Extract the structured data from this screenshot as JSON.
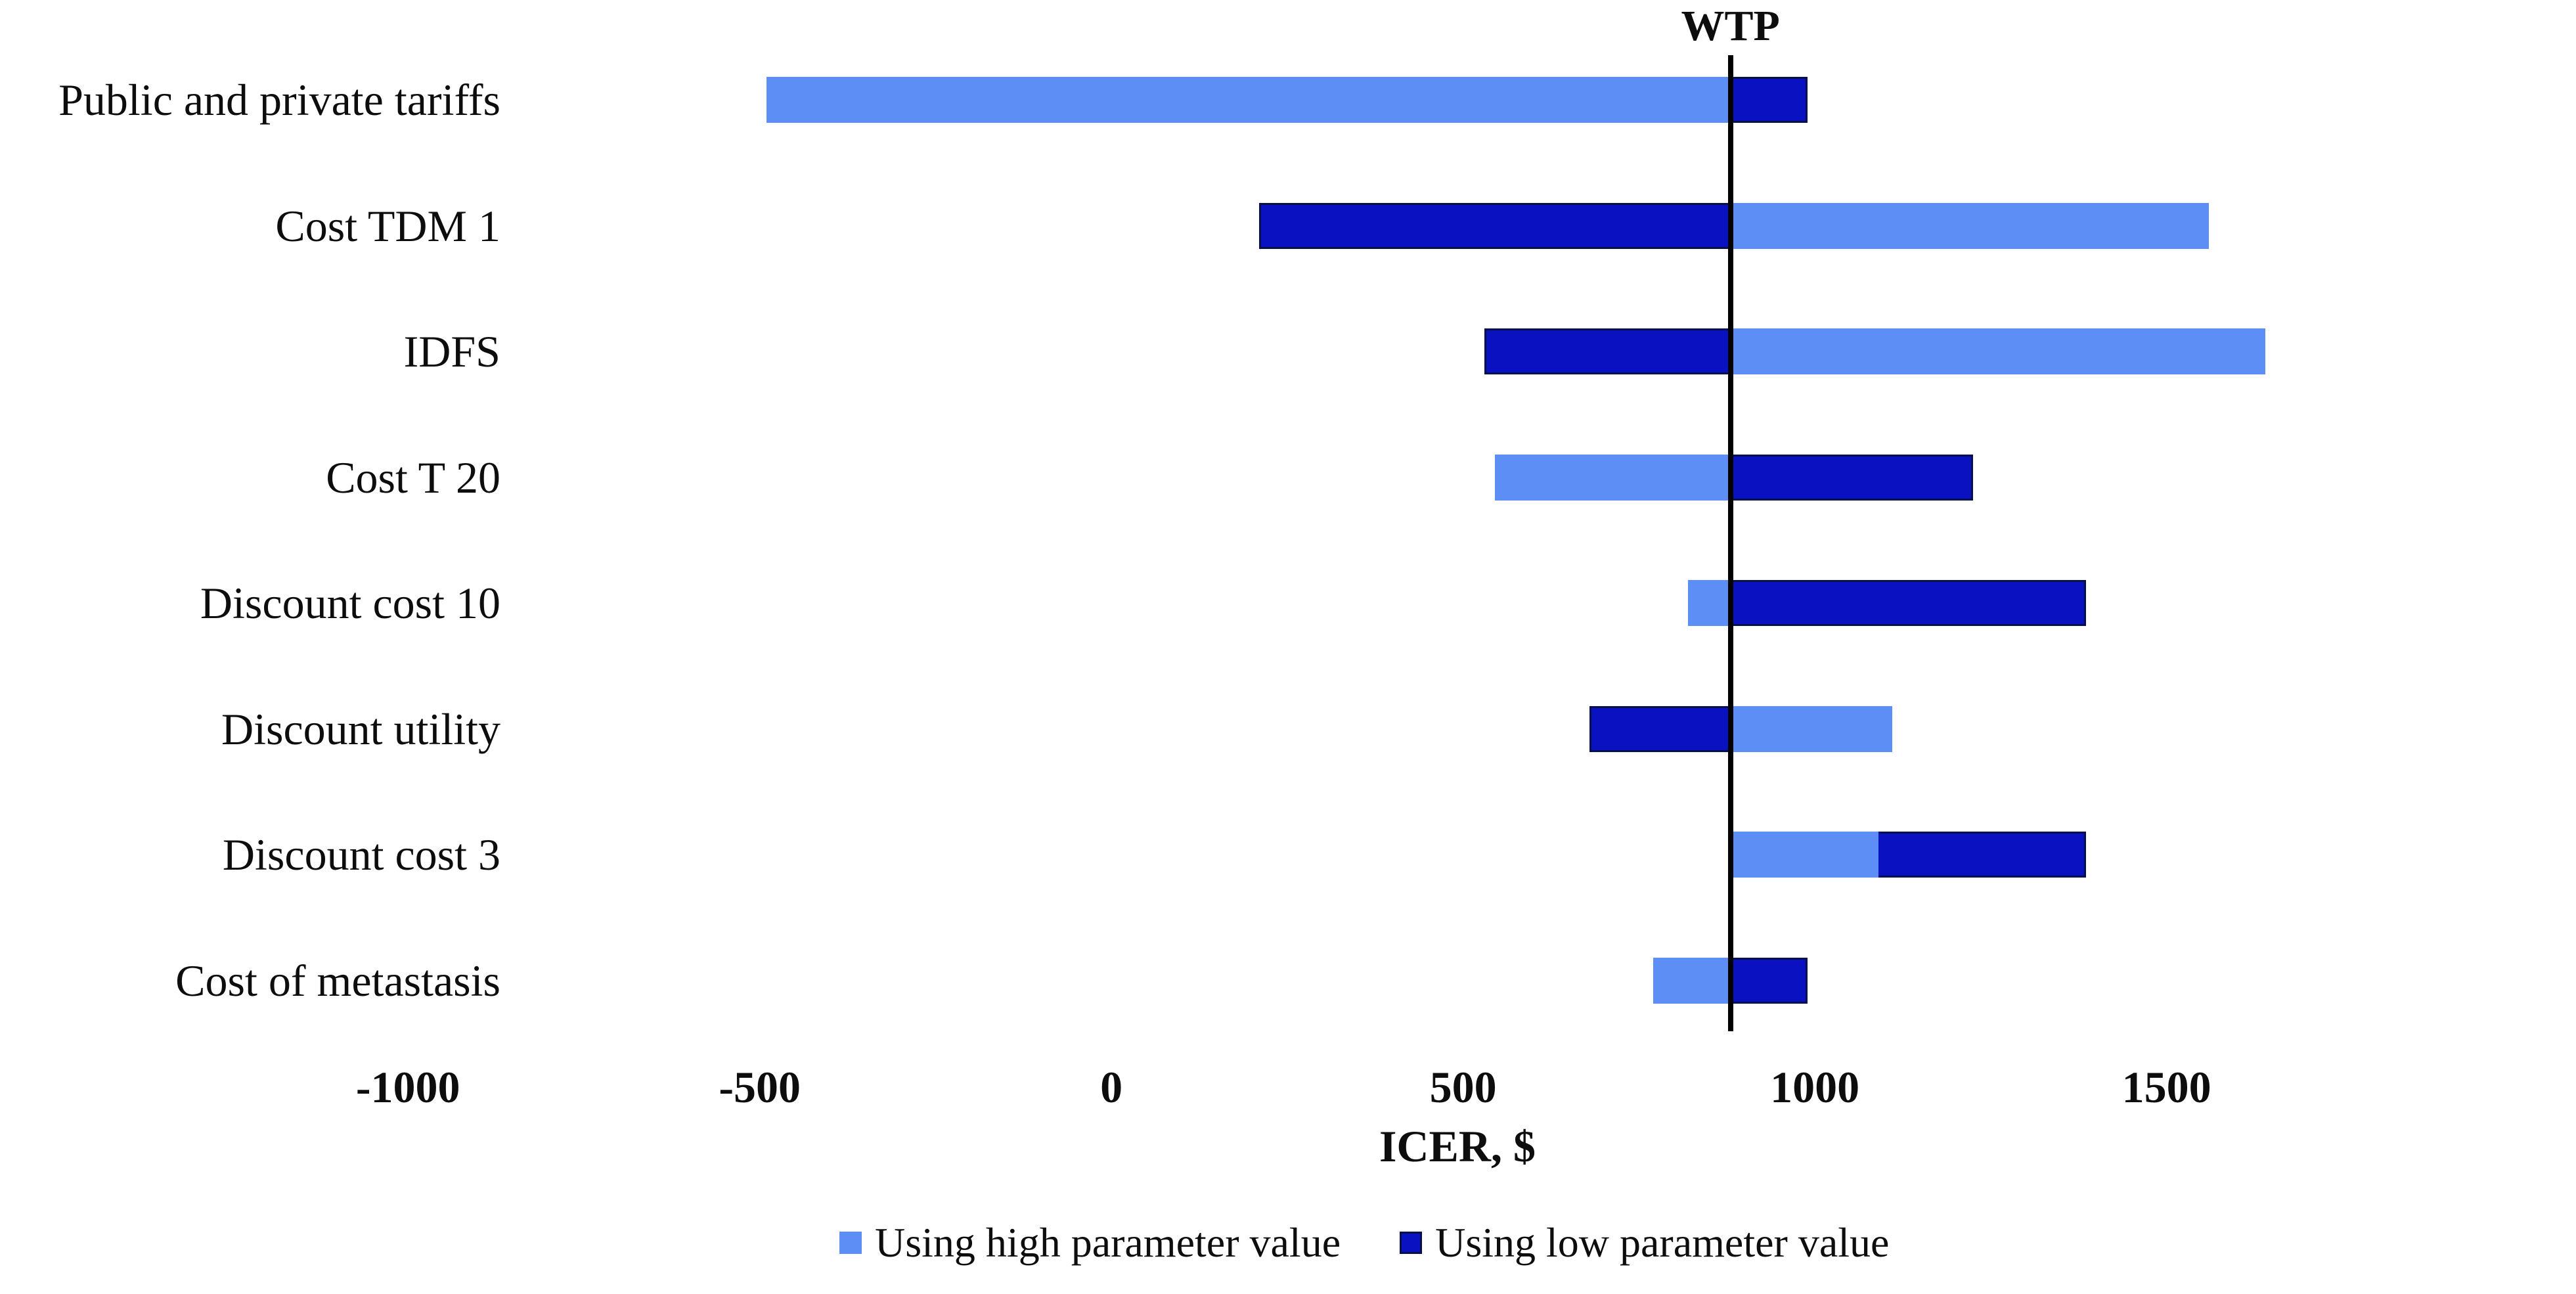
{
  "chart_data": {
    "type": "bar",
    "variant": "tornado-diagram",
    "title": "",
    "xlabel": "ICER, $",
    "wtp": {
      "label": "WTP",
      "value": 880
    },
    "base_icer": 880,
    "axis": {
      "range_min": -1580,
      "range_max": 2082,
      "ticks": [
        -1000,
        -500,
        0,
        500,
        1000,
        1500
      ],
      "grid": false
    },
    "categories": [
      "Public and private tariffs",
      "Cost TDM 1",
      "IDFS",
      "Cost T 20",
      "Discount cost 10",
      "Discount utility",
      "Discount cost 3",
      "Cost of metastasis"
    ],
    "series": [
      {
        "name": "Using high parameter value",
        "role": "high",
        "color": "#5C8EF5",
        "values": [
          -490,
          1560,
          1640,
          545,
          820,
          1110,
          1090,
          770
        ]
      },
      {
        "name": "Using low parameter value",
        "role": "low",
        "color": "#0A11C0",
        "border_color": "#05104d",
        "values": [
          990,
          210,
          530,
          1225,
          1385,
          680,
          1385,
          990
        ]
      }
    ],
    "legend_position": "bottom",
    "line_color": "#000000"
  }
}
